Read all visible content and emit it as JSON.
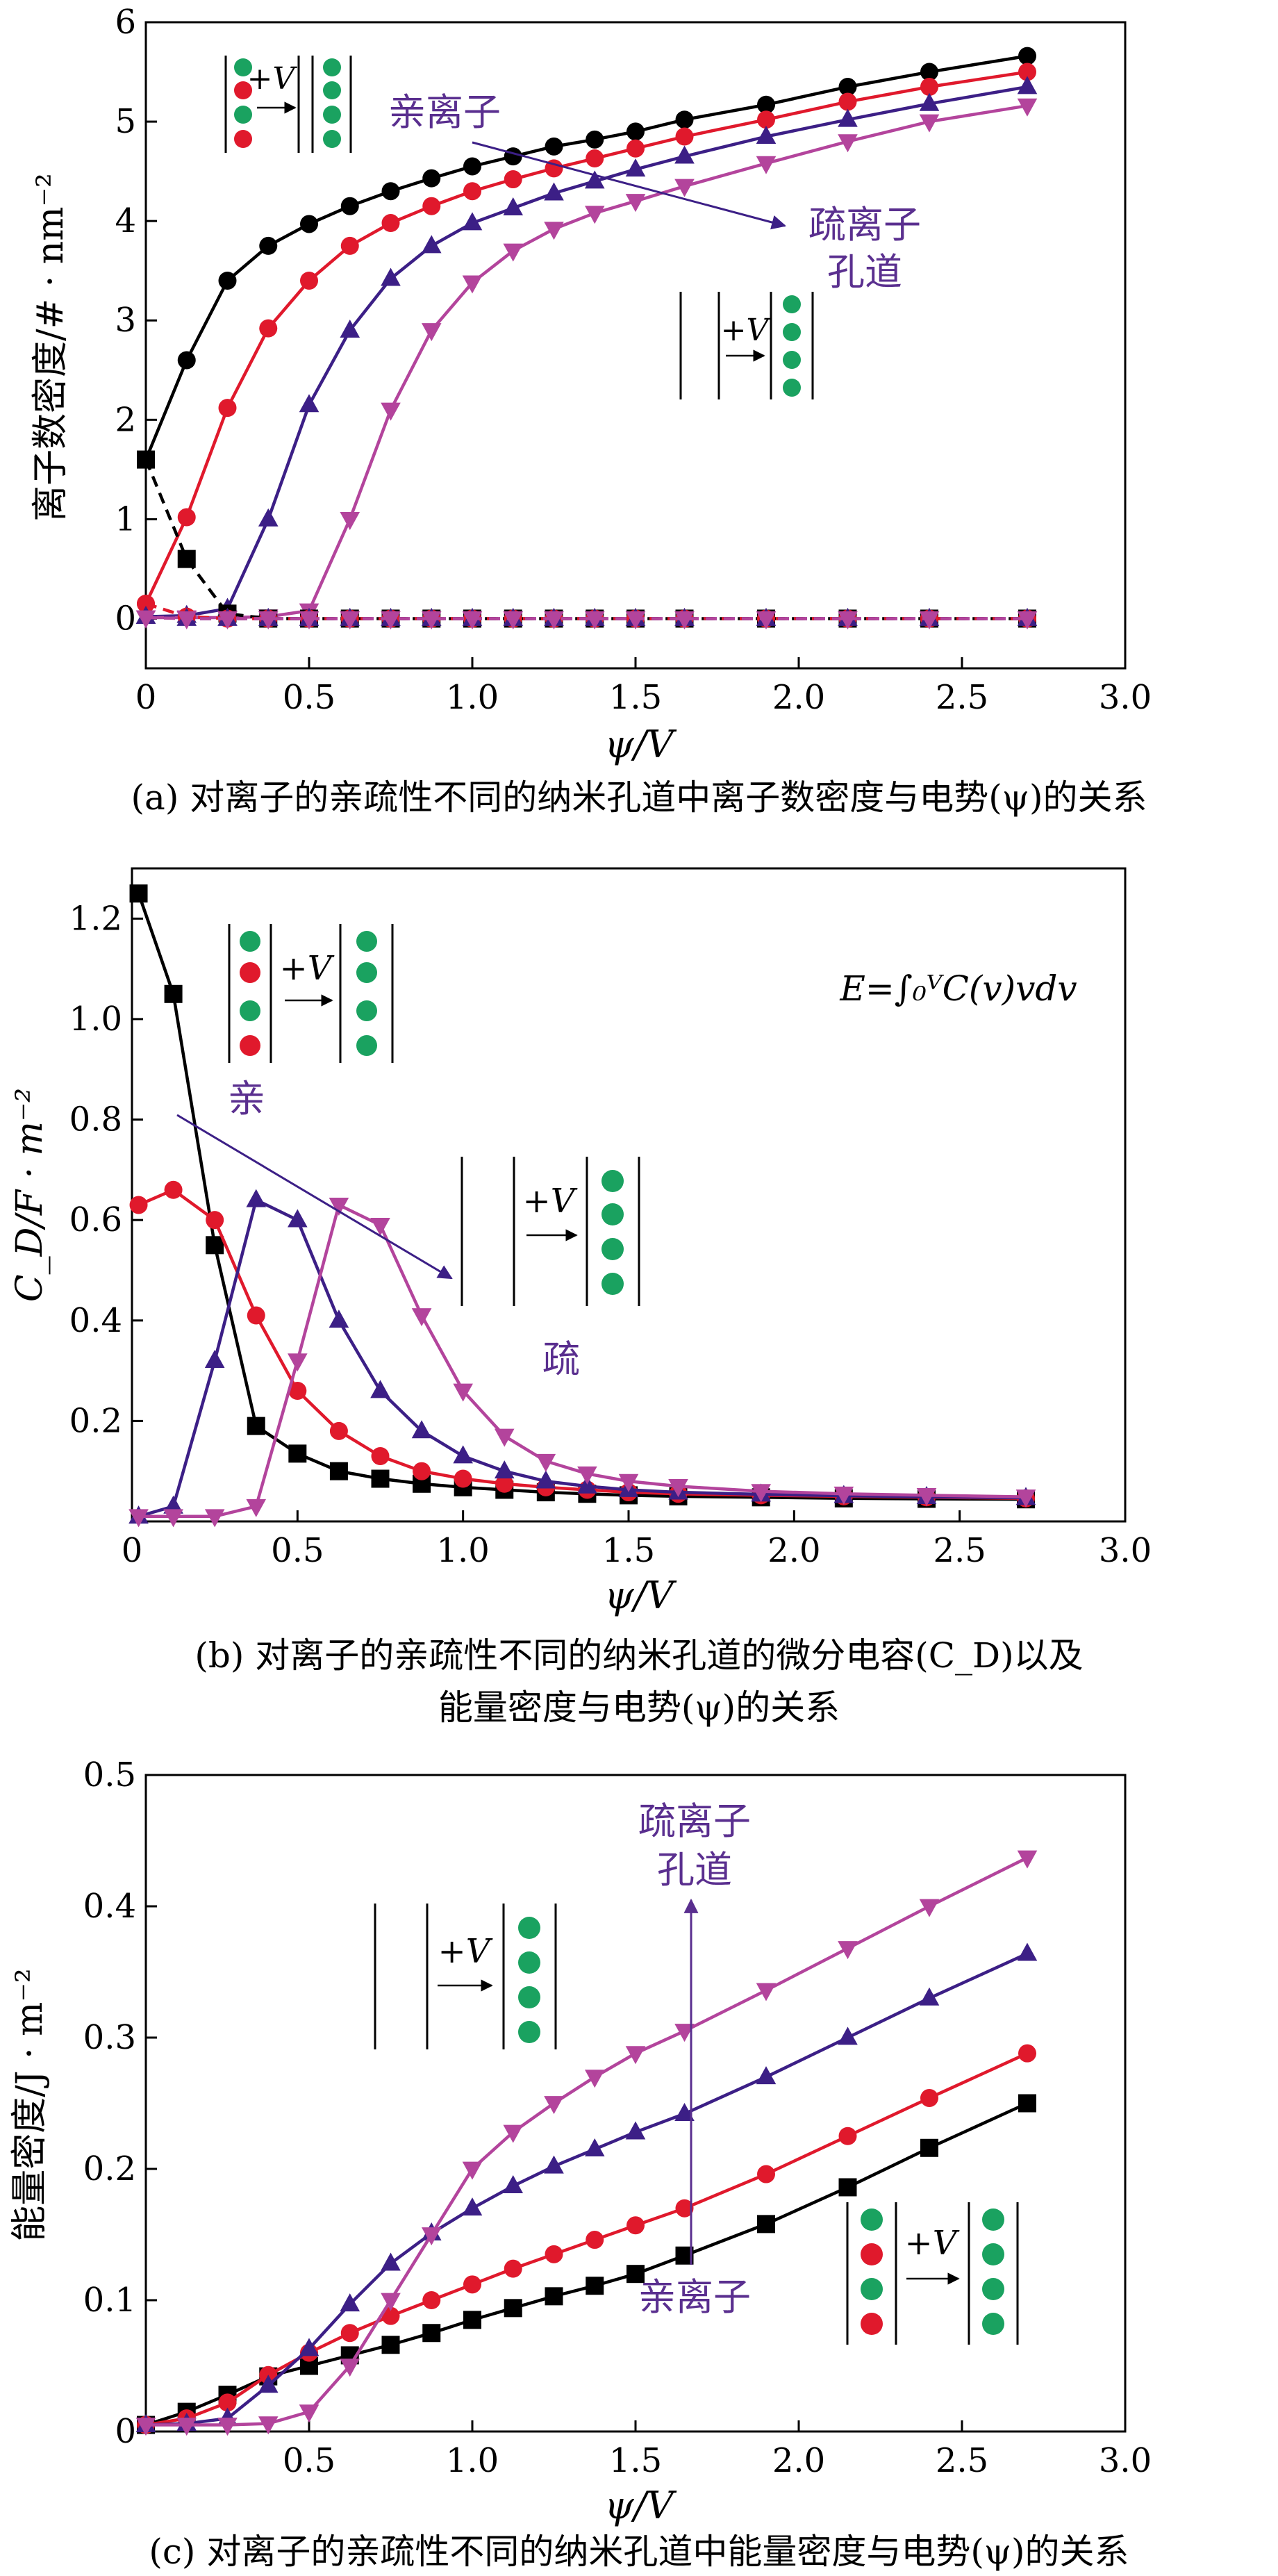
{
  "chart_data": [
    {
      "type": "line",
      "panel": "a",
      "xlabel": "ψ/V",
      "ylabel": "离子数密度/# · nm⁻²",
      "xlim": [
        0,
        3.0
      ],
      "ylim": [
        -0.5,
        6
      ],
      "xticks": [
        "0",
        "0.5",
        "1.0",
        "1.5",
        "2.0",
        "2.5",
        "3.0"
      ],
      "yticks": [
        "0",
        "1",
        "2",
        "3",
        "4",
        "5",
        "6"
      ],
      "caption": "(a) 对离子的亲疏性不同的纳米孔道中离子数密度与电势(ψ)的关系",
      "labels": {
        "philic": "亲离子",
        "phobic_line1": "疏离子",
        "phobic_line2": "孔道",
        "plus_v": "+V"
      },
      "series": [
        {
          "name": "black",
          "color": "#000000",
          "marker": "circle",
          "dash": false,
          "x": [
            0,
            0.125,
            0.25,
            0.375,
            0.5,
            0.625,
            0.75,
            0.875,
            1.0,
            1.125,
            1.25,
            1.375,
            1.5,
            1.65,
            1.9,
            2.15,
            2.4,
            2.7
          ],
          "y": [
            1.6,
            2.6,
            3.4,
            3.75,
            3.97,
            4.15,
            4.3,
            4.43,
            4.55,
            4.65,
            4.75,
            4.82,
            4.9,
            5.02,
            5.17,
            5.35,
            5.5,
            5.66
          ]
        },
        {
          "name": "red",
          "color": "#e0192c",
          "marker": "circle",
          "dash": false,
          "x": [
            0,
            0.125,
            0.25,
            0.375,
            0.5,
            0.625,
            0.75,
            0.875,
            1.0,
            1.125,
            1.25,
            1.375,
            1.5,
            1.65,
            1.9,
            2.15,
            2.4,
            2.7
          ],
          "y": [
            0.15,
            1.02,
            2.12,
            2.92,
            3.4,
            3.75,
            3.98,
            4.15,
            4.3,
            4.42,
            4.53,
            4.63,
            4.73,
            4.85,
            5.02,
            5.2,
            5.35,
            5.5
          ]
        },
        {
          "name": "blue",
          "color": "#3c1f86",
          "marker": "triangle-up",
          "dash": false,
          "x": [
            0,
            0.125,
            0.25,
            0.375,
            0.5,
            0.625,
            0.75,
            0.875,
            1.0,
            1.125,
            1.25,
            1.375,
            1.5,
            1.65,
            1.9,
            2.15,
            2.4,
            2.7
          ],
          "y": [
            0.02,
            0.03,
            0.1,
            1.0,
            2.15,
            2.9,
            3.42,
            3.75,
            3.98,
            4.13,
            4.28,
            4.4,
            4.52,
            4.65,
            4.85,
            5.02,
            5.18,
            5.35
          ]
        },
        {
          "name": "magenta",
          "color": "#b3449c",
          "marker": "triangle-down",
          "dash": false,
          "x": [
            0,
            0.125,
            0.25,
            0.375,
            0.5,
            0.625,
            0.75,
            0.875,
            1.0,
            1.125,
            1.25,
            1.375,
            1.5,
            1.65,
            1.9,
            2.15,
            2.4,
            2.7
          ],
          "y": [
            0.01,
            0.01,
            0.01,
            0.02,
            0.08,
            1.0,
            2.1,
            2.9,
            3.38,
            3.7,
            3.92,
            4.08,
            4.2,
            4.35,
            4.58,
            4.8,
            5.0,
            5.16
          ]
        },
        {
          "name": "black-dashed",
          "color": "#000000",
          "marker": "square",
          "dash": true,
          "x": [
            0,
            0.125,
            0.25,
            0.375,
            0.5,
            0.625,
            0.75,
            0.875,
            1.0,
            1.125,
            1.25,
            1.375,
            1.5,
            1.65,
            1.9,
            2.15,
            2.4,
            2.7
          ],
          "y": [
            1.6,
            0.6,
            0.05,
            0.0,
            0.0,
            0.0,
            0.0,
            0.0,
            0.0,
            0.0,
            0.0,
            0.0,
            0.0,
            0.0,
            0.0,
            0.0,
            0.0,
            0.0
          ]
        },
        {
          "name": "red-dashed",
          "color": "#e0192c",
          "marker": "circle",
          "dash": true,
          "x": [
            0,
            0.125,
            0.25,
            0.375,
            0.5,
            0.625,
            0.75,
            0.875,
            1.0,
            1.125,
            1.25,
            1.375,
            1.5,
            1.65,
            1.9,
            2.15,
            2.4,
            2.7
          ],
          "y": [
            0.15,
            0.02,
            0.0,
            0.0,
            0.0,
            0.0,
            0.0,
            0.0,
            0.0,
            0.0,
            0.0,
            0.0,
            0.0,
            0.0,
            0.0,
            0.0,
            0.0,
            0.0
          ]
        },
        {
          "name": "blue-dashed",
          "color": "#3c1f86",
          "marker": "triangle-up",
          "dash": true,
          "x": [
            0,
            0.125,
            0.25,
            0.375,
            0.5,
            0.625,
            0.75,
            0.875,
            1.0,
            1.125,
            1.25,
            1.375,
            1.5,
            1.65,
            1.9,
            2.15,
            2.4,
            2.7
          ],
          "y": [
            0.02,
            0.0,
            0.0,
            0.0,
            0.0,
            0.0,
            0.0,
            0.0,
            0.0,
            0.0,
            0.0,
            0.0,
            0.0,
            0.0,
            0.0,
            0.0,
            0.0,
            0.0
          ]
        },
        {
          "name": "magenta-dashed",
          "color": "#b3449c",
          "marker": "triangle-down",
          "dash": true,
          "x": [
            0,
            0.125,
            0.25,
            0.375,
            0.5,
            0.625,
            0.75,
            0.875,
            1.0,
            1.125,
            1.25,
            1.375,
            1.5,
            1.65,
            1.9,
            2.15,
            2.4,
            2.7
          ],
          "y": [
            0.01,
            0.0,
            0.0,
            0.0,
            0.0,
            0.0,
            0.0,
            0.0,
            0.0,
            0.0,
            0.0,
            0.0,
            0.0,
            0.0,
            0.0,
            0.0,
            0.0,
            0.0
          ]
        }
      ]
    },
    {
      "type": "line",
      "panel": "b",
      "xlabel": "ψ/V",
      "ylabel": "C_D/F · m⁻²",
      "xlim": [
        0,
        3.0
      ],
      "ylim": [
        0,
        1.3
      ],
      "xticks": [
        "0",
        "0.5",
        "1.0",
        "1.5",
        "2.0",
        "2.5",
        "3.0"
      ],
      "yticks": [
        "0.2",
        "0.4",
        "0.6",
        "0.8",
        "1.0",
        "1.2"
      ],
      "caption_line1": "(b) 对离子的亲疏性不同的纳米孔道的微分电容(C_D)以及",
      "caption_line2": "能量密度与电势(ψ)的关系",
      "labels": {
        "philic": "亲",
        "phobic": "疏",
        "plus_v": "+V",
        "equation": "E=∫₀ⱽC(v)vdv"
      },
      "series": [
        {
          "name": "black",
          "color": "#000000",
          "marker": "square",
          "x": [
            0.02,
            0.125,
            0.25,
            0.375,
            0.5,
            0.625,
            0.75,
            0.875,
            1.0,
            1.125,
            1.25,
            1.375,
            1.5,
            1.65,
            1.9,
            2.15,
            2.4,
            2.7
          ],
          "y": [
            1.25,
            1.05,
            0.55,
            0.19,
            0.135,
            0.1,
            0.085,
            0.075,
            0.068,
            0.063,
            0.058,
            0.055,
            0.052,
            0.05,
            0.048,
            0.046,
            0.045,
            0.044
          ]
        },
        {
          "name": "red",
          "color": "#e0192c",
          "marker": "circle",
          "x": [
            0.02,
            0.125,
            0.25,
            0.375,
            0.5,
            0.625,
            0.75,
            0.875,
            1.0,
            1.125,
            1.25,
            1.375,
            1.5,
            1.65,
            1.9,
            2.15,
            2.4,
            2.7
          ],
          "y": [
            0.63,
            0.66,
            0.6,
            0.41,
            0.26,
            0.18,
            0.13,
            0.1,
            0.085,
            0.075,
            0.068,
            0.063,
            0.058,
            0.055,
            0.052,
            0.05,
            0.048,
            0.046
          ]
        },
        {
          "name": "blue",
          "color": "#3c1f86",
          "marker": "triangle-up",
          "x": [
            0.02,
            0.125,
            0.25,
            0.375,
            0.5,
            0.625,
            0.75,
            0.875,
            1.0,
            1.125,
            1.25,
            1.375,
            1.5,
            1.65,
            1.9,
            2.15,
            2.4,
            2.7
          ],
          "y": [
            0.01,
            0.03,
            0.32,
            0.64,
            0.6,
            0.4,
            0.26,
            0.18,
            0.13,
            0.1,
            0.08,
            0.07,
            0.063,
            0.058,
            0.054,
            0.051,
            0.049,
            0.047
          ]
        },
        {
          "name": "magenta",
          "color": "#b3449c",
          "marker": "triangle-down",
          "x": [
            0.02,
            0.125,
            0.25,
            0.375,
            0.5,
            0.625,
            0.75,
            0.875,
            1.0,
            1.125,
            1.25,
            1.375,
            1.5,
            1.65,
            1.9,
            2.15,
            2.4,
            2.7
          ],
          "y": [
            0.01,
            0.01,
            0.01,
            0.03,
            0.32,
            0.63,
            0.59,
            0.41,
            0.26,
            0.17,
            0.12,
            0.095,
            0.08,
            0.07,
            0.06,
            0.055,
            0.052,
            0.049
          ]
        }
      ]
    },
    {
      "type": "line",
      "panel": "c",
      "xlabel": "ψ/V",
      "ylabel": "能量密度/J · m⁻²",
      "xlim": [
        0,
        3.0
      ],
      "ylim": [
        0,
        0.5
      ],
      "xticks": [
        "0.5",
        "1.0",
        "1.5",
        "2.0",
        "2.5",
        "3.0"
      ],
      "yticks": [
        "0",
        "0.1",
        "0.2",
        "0.3",
        "0.4",
        "0.5"
      ],
      "caption": "(c) 对离子的亲疏性不同的纳米孔道中能量密度与电势(ψ)的关系",
      "labels": {
        "phobic_line1": "疏离子",
        "phobic_line2": "孔道",
        "philic": "亲离子",
        "plus_v": "+V"
      },
      "series": [
        {
          "name": "black",
          "color": "#000000",
          "marker": "square",
          "x": [
            0.0,
            0.125,
            0.25,
            0.375,
            0.5,
            0.625,
            0.75,
            0.875,
            1.0,
            1.125,
            1.25,
            1.375,
            1.5,
            1.65,
            1.9,
            2.15,
            2.4,
            2.7
          ],
          "y": [
            0.005,
            0.015,
            0.028,
            0.042,
            0.05,
            0.058,
            0.066,
            0.075,
            0.085,
            0.094,
            0.103,
            0.111,
            0.12,
            0.134,
            0.158,
            0.186,
            0.216,
            0.25
          ]
        },
        {
          "name": "red",
          "color": "#e0192c",
          "marker": "circle",
          "x": [
            0.0,
            0.125,
            0.25,
            0.375,
            0.5,
            0.625,
            0.75,
            0.875,
            1.0,
            1.125,
            1.25,
            1.375,
            1.5,
            1.65,
            1.9,
            2.15,
            2.4,
            2.7
          ],
          "y": [
            0.005,
            0.01,
            0.022,
            0.043,
            0.06,
            0.075,
            0.088,
            0.1,
            0.112,
            0.124,
            0.135,
            0.146,
            0.157,
            0.17,
            0.196,
            0.225,
            0.254,
            0.288
          ]
        },
        {
          "name": "blue",
          "color": "#3c1f86",
          "marker": "triangle-up",
          "x": [
            0.0,
            0.125,
            0.25,
            0.375,
            0.5,
            0.625,
            0.75,
            0.875,
            1.0,
            1.125,
            1.25,
            1.375,
            1.5,
            1.65,
            1.9,
            2.15,
            2.4,
            2.7
          ],
          "y": [
            0.005,
            0.006,
            0.01,
            0.035,
            0.063,
            0.097,
            0.128,
            0.151,
            0.17,
            0.187,
            0.202,
            0.215,
            0.228,
            0.242,
            0.27,
            0.3,
            0.33,
            0.364
          ]
        },
        {
          "name": "magenta",
          "color": "#b3449c",
          "marker": "triangle-down",
          "x": [
            0.0,
            0.125,
            0.25,
            0.375,
            0.5,
            0.625,
            0.75,
            0.875,
            1.0,
            1.125,
            1.25,
            1.375,
            1.5,
            1.65,
            1.9,
            2.15,
            2.4,
            2.7
          ],
          "y": [
            0.005,
            0.005,
            0.005,
            0.006,
            0.015,
            0.05,
            0.1,
            0.15,
            0.2,
            0.228,
            0.25,
            0.27,
            0.288,
            0.305,
            0.336,
            0.368,
            0.4,
            0.437
          ]
        }
      ]
    }
  ]
}
